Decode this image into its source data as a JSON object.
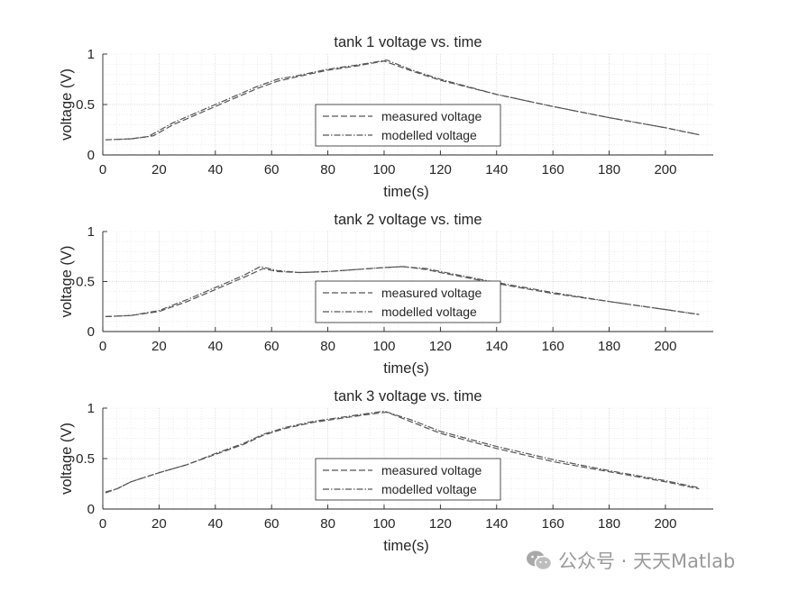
{
  "watermark": {
    "text": "公众号 · 天天Matlab",
    "icon": "wechat-icon"
  },
  "colors": {
    "axes": "#262626",
    "grid": "#c9c9c9",
    "measured": "#555555",
    "modelled": "#555555"
  },
  "chart_data": [
    {
      "type": "line",
      "title": "tank 1 voltage vs. time",
      "xlabel": "time(s)",
      "ylabel": "voltage (V)",
      "xlim": [
        0,
        217
      ],
      "ylim": [
        0,
        1
      ],
      "xticks": [
        0,
        20,
        40,
        60,
        80,
        100,
        120,
        140,
        160,
        180,
        200
      ],
      "yticks": [
        0,
        0.5,
        1
      ],
      "ytick_labels": [
        "0",
        "0.5",
        "1"
      ],
      "grid": true,
      "minor_grid": true,
      "legend": {
        "placement": "inside-bottom-center",
        "entries": [
          "measured voltage",
          "modelled voltage"
        ]
      },
      "series": [
        {
          "name": "measured voltage",
          "style": "dashed",
          "x": [
            1,
            10,
            18,
            25,
            40,
            55,
            62,
            70,
            80,
            90,
            100,
            110,
            120,
            140,
            160,
            180,
            200,
            212
          ],
          "y": [
            0.15,
            0.16,
            0.19,
            0.3,
            0.48,
            0.66,
            0.73,
            0.78,
            0.84,
            0.88,
            0.93,
            0.83,
            0.74,
            0.6,
            0.48,
            0.37,
            0.27,
            0.2
          ]
        },
        {
          "name": "modelled voltage",
          "style": "dashdot",
          "x": [
            1,
            10,
            16,
            25,
            40,
            55,
            62,
            70,
            80,
            90,
            101,
            110,
            120,
            140,
            160,
            180,
            200,
            212
          ],
          "y": [
            0.15,
            0.16,
            0.18,
            0.32,
            0.5,
            0.68,
            0.75,
            0.79,
            0.85,
            0.89,
            0.94,
            0.84,
            0.75,
            0.6,
            0.48,
            0.37,
            0.27,
            0.2
          ]
        }
      ]
    },
    {
      "type": "line",
      "title": "tank 2 voltage vs. time",
      "xlabel": "time(s)",
      "ylabel": "voltage (V)",
      "xlim": [
        0,
        217
      ],
      "ylim": [
        0,
        1
      ],
      "xticks": [
        0,
        20,
        40,
        60,
        80,
        100,
        120,
        140,
        160,
        180,
        200
      ],
      "yticks": [
        0,
        0.5,
        1
      ],
      "ytick_labels": [
        "0",
        "0.5",
        "1"
      ],
      "grid": true,
      "minor_grid": true,
      "legend": {
        "placement": "inside-bottom-center",
        "entries": [
          "measured voltage",
          "modelled voltage"
        ]
      },
      "series": [
        {
          "name": "measured voltage",
          "style": "dashed",
          "x": [
            1,
            10,
            20,
            30,
            40,
            50,
            57,
            62,
            70,
            80,
            90,
            100,
            107,
            115,
            120,
            140,
            160,
            180,
            200,
            212
          ],
          "y": [
            0.15,
            0.16,
            0.2,
            0.3,
            0.42,
            0.54,
            0.63,
            0.6,
            0.59,
            0.6,
            0.62,
            0.64,
            0.65,
            0.62,
            0.59,
            0.48,
            0.38,
            0.3,
            0.22,
            0.17
          ]
        },
        {
          "name": "modelled voltage",
          "style": "dashdot",
          "x": [
            1,
            10,
            20,
            30,
            40,
            50,
            56,
            62,
            70,
            80,
            90,
            100,
            106,
            115,
            120,
            140,
            160,
            180,
            200,
            212
          ],
          "y": [
            0.15,
            0.16,
            0.21,
            0.32,
            0.44,
            0.56,
            0.65,
            0.61,
            0.59,
            0.6,
            0.62,
            0.64,
            0.65,
            0.63,
            0.6,
            0.49,
            0.39,
            0.3,
            0.22,
            0.17
          ]
        }
      ]
    },
    {
      "type": "line",
      "title": "tank 3 voltage vs. time",
      "xlabel": "time(s)",
      "ylabel": "voltage (V)",
      "xlim": [
        0,
        217
      ],
      "ylim": [
        0,
        1
      ],
      "xticks": [
        0,
        20,
        40,
        60,
        80,
        100,
        120,
        140,
        160,
        180,
        200
      ],
      "yticks": [
        0,
        0.5,
        1
      ],
      "ytick_labels": [
        "0",
        "0.5",
        "1"
      ],
      "grid": true,
      "minor_grid": true,
      "legend": {
        "placement": "inside-bottom-center",
        "entries": [
          "measured voltage",
          "modelled voltage"
        ]
      },
      "series": [
        {
          "name": "measured voltage",
          "style": "dashed",
          "x": [
            1,
            5,
            10,
            20,
            30,
            40,
            50,
            57,
            65,
            75,
            85,
            95,
            101,
            110,
            120,
            140,
            160,
            180,
            200,
            212
          ],
          "y": [
            0.17,
            0.2,
            0.27,
            0.36,
            0.44,
            0.54,
            0.64,
            0.73,
            0.8,
            0.86,
            0.9,
            0.94,
            0.96,
            0.86,
            0.75,
            0.6,
            0.47,
            0.37,
            0.27,
            0.2
          ]
        },
        {
          "name": "modelled voltage",
          "style": "dashdot",
          "x": [
            1,
            5,
            10,
            20,
            30,
            40,
            50,
            57,
            65,
            75,
            85,
            95,
            100,
            110,
            120,
            140,
            160,
            180,
            200,
            212
          ],
          "y": [
            0.16,
            0.2,
            0.27,
            0.36,
            0.44,
            0.55,
            0.65,
            0.74,
            0.81,
            0.87,
            0.91,
            0.95,
            0.97,
            0.88,
            0.77,
            0.62,
            0.49,
            0.38,
            0.28,
            0.21
          ]
        }
      ]
    }
  ]
}
